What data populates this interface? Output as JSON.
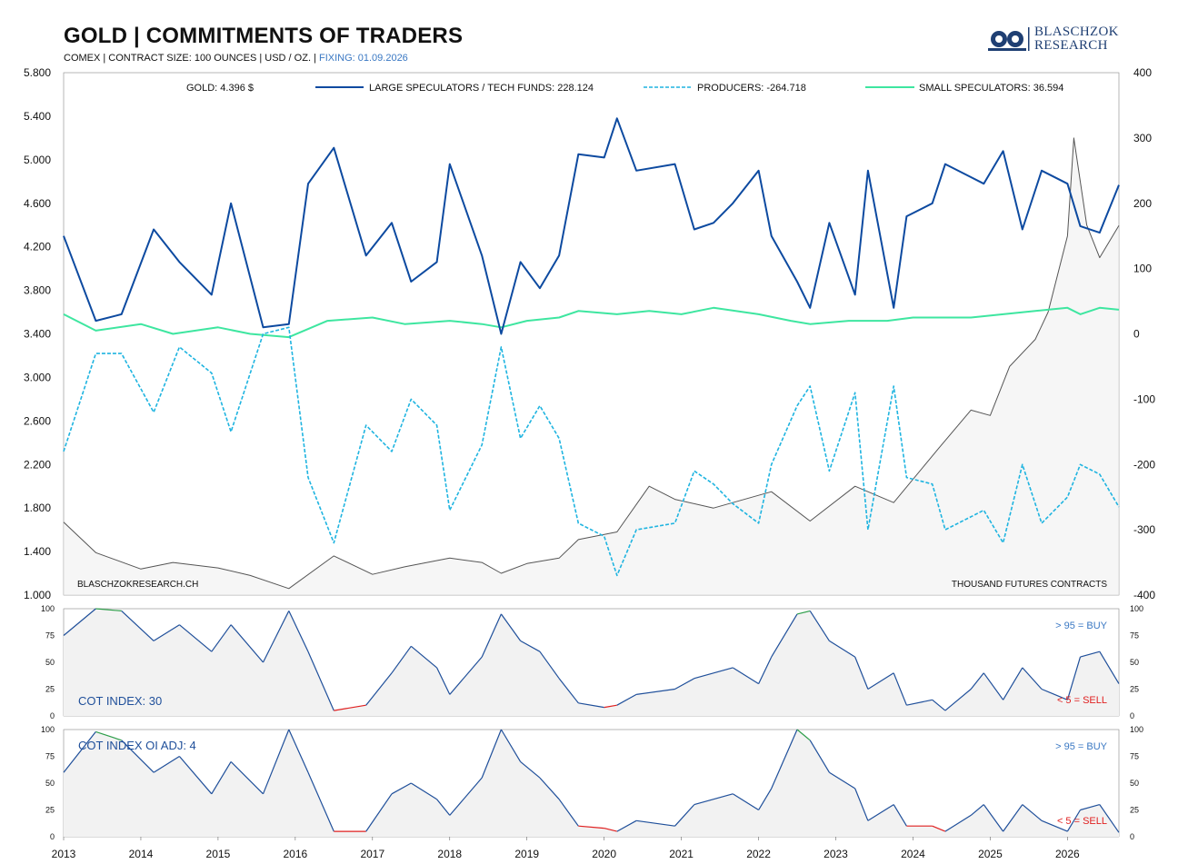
{
  "header": {
    "title": "GOLD | COMMITMENTS OF TRADERS",
    "subtitle_main": "COMEX | CONTRACT SIZE: 100 OUNCES | USD / OZ. | ",
    "subtitle_fixing": "FIXING: 01.09.2026",
    "logo_line1": "BLASCHZOK",
    "logo_line2": "RESEARCH"
  },
  "colors": {
    "gold": "#555555",
    "large_speculators": "#0d4aa0",
    "producers": "#1fb4e0",
    "small_speculators": "#3ee6a0",
    "cot_line": "#1f4f9a",
    "buy_zone": "#2e9e4a",
    "sell_zone": "#e02020"
  },
  "chart_data": [
    {
      "type": "line",
      "title": "GOLD | COMMITMENTS OF TRADERS",
      "x_axis": {
        "type": "date",
        "ticks": [
          "2013",
          "2014",
          "2015",
          "2016",
          "2017",
          "2018",
          "2019",
          "2020",
          "2021",
          "2022",
          "2023",
          "2024",
          "2025",
          "2026"
        ],
        "range": [
          "2013-01-01",
          "2026-09-01"
        ]
      },
      "y_left": {
        "unit": "USD / OZ.",
        "ylim": [
          1000,
          5800
        ],
        "ticks": [
          "1.000",
          "1.400",
          "1.800",
          "2.200",
          "2.600",
          "3.000",
          "3.400",
          "3.800",
          "4.200",
          "4.600",
          "5.000",
          "5.400",
          "5.800"
        ]
      },
      "y_right": {
        "unit": "THOUSAND FUTURES CONTRACTS",
        "ylim": [
          -400,
          400
        ],
        "ticks": [
          "-400",
          "-300",
          "-200",
          "-100",
          "0",
          "100",
          "200",
          "300",
          "400"
        ]
      },
      "legend": [
        "GOLD: 4.396 $",
        "LARGE SPECULATORS / TECH FUNDS: 228.124",
        "PRODUCERS: -264.718",
        "SMALL SPECULATORS: 36.594"
      ],
      "legend_position": "top",
      "annotations": [
        "BLASCHZOKRESEARCH.CH",
        "THOUSAND FUTURES CONTRACTS"
      ],
      "series": [
        {
          "name": "GOLD: 4.396 $",
          "axis": "left",
          "style": "solid",
          "x": [
            "2013-01",
            "2013-06",
            "2014-01",
            "2014-06",
            "2015-01",
            "2015-06",
            "2015-12",
            "2016-07",
            "2017-01",
            "2017-06",
            "2018-01",
            "2018-06",
            "2018-09",
            "2019-01",
            "2019-06",
            "2019-09",
            "2020-03",
            "2020-08",
            "2020-12",
            "2021-06",
            "2022-03",
            "2022-09",
            "2023-04",
            "2023-10",
            "2024-05",
            "2024-10",
            "2025-01",
            "2025-04",
            "2025-08",
            "2025-10",
            "2026-01",
            "2026-02",
            "2026-04",
            "2026-06",
            "2026-09"
          ],
          "y": [
            1670,
            1390,
            1240,
            1300,
            1250,
            1180,
            1060,
            1360,
            1190,
            1260,
            1340,
            1300,
            1200,
            1290,
            1340,
            1510,
            1580,
            2000,
            1880,
            1800,
            1950,
            1680,
            2000,
            1850,
            2350,
            2700,
            2650,
            3100,
            3350,
            3600,
            4300,
            5200,
            4400,
            4100,
            4396
          ]
        },
        {
          "name": "LARGE SPECULATORS / TECH FUNDS: 228.124",
          "axis": "right",
          "style": "solid",
          "x": [
            "2013-01",
            "2013-06",
            "2013-10",
            "2014-03",
            "2014-07",
            "2014-12",
            "2015-03",
            "2015-08",
            "2015-12",
            "2016-03",
            "2016-07",
            "2016-12",
            "2017-04",
            "2017-07",
            "2017-11",
            "2018-01",
            "2018-06",
            "2018-09",
            "2018-12",
            "2019-03",
            "2019-06",
            "2019-09",
            "2020-01",
            "2020-03",
            "2020-06",
            "2020-12",
            "2021-03",
            "2021-06",
            "2021-09",
            "2022-01",
            "2022-03",
            "2022-07",
            "2022-09",
            "2022-12",
            "2023-04",
            "2023-06",
            "2023-10",
            "2023-12",
            "2024-04",
            "2024-06",
            "2024-10",
            "2024-12",
            "2025-03",
            "2025-06",
            "2025-09",
            "2026-01",
            "2026-03",
            "2026-06",
            "2026-09"
          ],
          "y": [
            150,
            20,
            30,
            160,
            110,
            60,
            200,
            10,
            15,
            230,
            285,
            120,
            170,
            80,
            110,
            260,
            120,
            0,
            110,
            70,
            120,
            275,
            270,
            330,
            250,
            260,
            160,
            170,
            200,
            250,
            150,
            80,
            40,
            170,
            60,
            250,
            40,
            180,
            200,
            260,
            240,
            230,
            280,
            160,
            250,
            230,
            165,
            155,
            228
          ]
        },
        {
          "name": "PRODUCERS: -264.718",
          "axis": "right",
          "style": "dashed",
          "x": [
            "2013-01",
            "2013-06",
            "2013-10",
            "2014-03",
            "2014-07",
            "2014-12",
            "2015-03",
            "2015-08",
            "2015-12",
            "2016-03",
            "2016-07",
            "2016-12",
            "2017-04",
            "2017-07",
            "2017-11",
            "2018-01",
            "2018-06",
            "2018-09",
            "2018-12",
            "2019-03",
            "2019-06",
            "2019-09",
            "2020-01",
            "2020-03",
            "2020-06",
            "2020-12",
            "2021-03",
            "2021-06",
            "2021-09",
            "2022-01",
            "2022-03",
            "2022-07",
            "2022-09",
            "2022-12",
            "2023-04",
            "2023-06",
            "2023-10",
            "2023-12",
            "2024-04",
            "2024-06",
            "2024-10",
            "2024-12",
            "2025-03",
            "2025-06",
            "2025-09",
            "2026-01",
            "2026-03",
            "2026-06",
            "2026-09"
          ],
          "y": [
            -180,
            -30,
            -30,
            -120,
            -20,
            -60,
            -150,
            0,
            10,
            -220,
            -320,
            -140,
            -180,
            -100,
            -140,
            -270,
            -170,
            -20,
            -160,
            -110,
            -160,
            -290,
            -310,
            -370,
            -300,
            -290,
            -210,
            -230,
            -260,
            -290,
            -200,
            -110,
            -80,
            -210,
            -90,
            -300,
            -80,
            -220,
            -230,
            -300,
            -280,
            -270,
            -320,
            -200,
            -290,
            -250,
            -200,
            -215,
            -265
          ]
        },
        {
          "name": "SMALL SPECULATORS: 36.594",
          "axis": "right",
          "style": "solid",
          "x": [
            "2013-01",
            "2013-06",
            "2014-01",
            "2014-06",
            "2015-01",
            "2015-06",
            "2015-12",
            "2016-06",
            "2017-01",
            "2017-06",
            "2018-01",
            "2018-06",
            "2018-09",
            "2019-01",
            "2019-06",
            "2019-09",
            "2020-03",
            "2020-08",
            "2021-01",
            "2021-06",
            "2022-01",
            "2022-06",
            "2022-09",
            "2023-03",
            "2023-09",
            "2024-01",
            "2024-06",
            "2024-10",
            "2025-03",
            "2025-08",
            "2026-01",
            "2026-03",
            "2026-06",
            "2026-09"
          ],
          "y": [
            30,
            5,
            15,
            0,
            10,
            0,
            -5,
            20,
            25,
            15,
            20,
            15,
            10,
            20,
            25,
            35,
            30,
            35,
            30,
            40,
            30,
            20,
            15,
            20,
            20,
            25,
            25,
            25,
            30,
            35,
            40,
            30,
            40,
            37
          ]
        }
      ]
    },
    {
      "type": "line",
      "title": "COT INDEX: 30",
      "ylim": [
        0,
        100
      ],
      "y_ticks": [
        "0",
        "25",
        "50",
        "75",
        "100"
      ],
      "thresholds": [
        "> 95 = BUY",
        "< 5 = SELL"
      ],
      "series": [
        {
          "name": "COT INDEX",
          "x": [
            "2013-01",
            "2013-06",
            "2013-10",
            "2014-03",
            "2014-07",
            "2014-12",
            "2015-03",
            "2015-08",
            "2015-12",
            "2016-03",
            "2016-07",
            "2016-12",
            "2017-04",
            "2017-07",
            "2017-11",
            "2018-01",
            "2018-06",
            "2018-09",
            "2018-12",
            "2019-03",
            "2019-06",
            "2019-09",
            "2020-01",
            "2020-03",
            "2020-06",
            "2020-12",
            "2021-03",
            "2021-06",
            "2021-09",
            "2022-01",
            "2022-03",
            "2022-07",
            "2022-09",
            "2022-12",
            "2023-04",
            "2023-06",
            "2023-10",
            "2023-12",
            "2024-04",
            "2024-06",
            "2024-10",
            "2024-12",
            "2025-03",
            "2025-06",
            "2025-09",
            "2026-01",
            "2026-03",
            "2026-06",
            "2026-09"
          ],
          "y": [
            75,
            100,
            98,
            70,
            85,
            60,
            85,
            50,
            98,
            60,
            5,
            10,
            40,
            65,
            45,
            20,
            55,
            95,
            70,
            60,
            35,
            12,
            8,
            10,
            20,
            25,
            35,
            40,
            45,
            30,
            55,
            95,
            98,
            70,
            55,
            25,
            40,
            10,
            15,
            5,
            25,
            40,
            15,
            45,
            25,
            15,
            55,
            60,
            30
          ]
        }
      ]
    },
    {
      "type": "line",
      "title": "COT INDEX OI ADJ: 4",
      "ylim": [
        0,
        100
      ],
      "y_ticks": [
        "0",
        "25",
        "50",
        "75",
        "100"
      ],
      "thresholds": [
        "> 95 = BUY",
        "< 5 = SELL"
      ],
      "series": [
        {
          "name": "COT INDEX OI ADJ",
          "x": [
            "2013-01",
            "2013-06",
            "2013-10",
            "2014-03",
            "2014-07",
            "2014-12",
            "2015-03",
            "2015-08",
            "2015-12",
            "2016-03",
            "2016-07",
            "2016-12",
            "2017-04",
            "2017-07",
            "2017-11",
            "2018-01",
            "2018-06",
            "2018-09",
            "2018-12",
            "2019-03",
            "2019-06",
            "2019-09",
            "2020-01",
            "2020-03",
            "2020-06",
            "2020-12",
            "2021-03",
            "2021-06",
            "2021-09",
            "2022-01",
            "2022-03",
            "2022-07",
            "2022-09",
            "2022-12",
            "2023-04",
            "2023-06",
            "2023-10",
            "2023-12",
            "2024-04",
            "2024-06",
            "2024-10",
            "2024-12",
            "2025-03",
            "2025-06",
            "2025-09",
            "2026-01",
            "2026-03",
            "2026-06",
            "2026-09"
          ],
          "y": [
            60,
            98,
            90,
            60,
            75,
            40,
            70,
            40,
            100,
            60,
            5,
            5,
            40,
            50,
            35,
            20,
            55,
            100,
            70,
            55,
            35,
            10,
            8,
            5,
            15,
            10,
            30,
            35,
            40,
            25,
            45,
            100,
            90,
            60,
            45,
            15,
            30,
            10,
            10,
            5,
            20,
            30,
            5,
            30,
            15,
            5,
            25,
            30,
            4
          ]
        }
      ]
    }
  ],
  "panels": {
    "main": {
      "legend": [
        {
          "label": "GOLD: 4.396 $"
        },
        {
          "label": "LARGE SPECULATORS / TECH FUNDS: 228.124"
        },
        {
          "label": "PRODUCERS: -264.718"
        },
        {
          "label": "SMALL SPECULATORS: 36.594"
        }
      ],
      "watermark": "BLASCHZOKRESEARCH.CH",
      "unit_note": "THOUSAND FUTURES CONTRACTS"
    },
    "cot": {
      "label": "COT INDEX: 30",
      "buy_label": "> 95 = BUY",
      "sell_label": "< 5 = SELL"
    },
    "cot_oi": {
      "label": "COT INDEX OI ADJ: 4",
      "buy_label": "> 95 = BUY",
      "sell_label": "< 5 = SELL"
    }
  }
}
